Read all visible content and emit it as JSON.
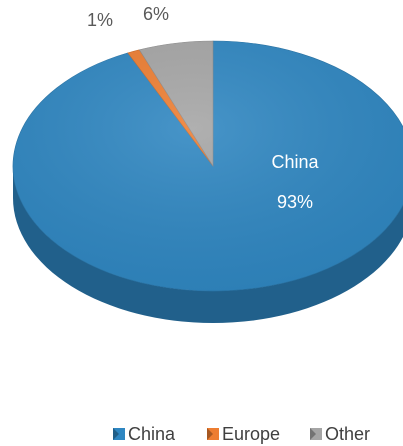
{
  "chart_data": {
    "type": "pie",
    "title": "",
    "style": "3d",
    "legend_position": "bottom",
    "slices": [
      {
        "label": "China",
        "value": 93,
        "value_label": "93%",
        "color": "#2e86c1"
      },
      {
        "label": "Europe",
        "value": 1,
        "value_label": "1%",
        "color": "#ed7d31"
      },
      {
        "label": "Other",
        "value": 6,
        "value_label": "6%",
        "color": "#a5a5a5"
      }
    ]
  }
}
